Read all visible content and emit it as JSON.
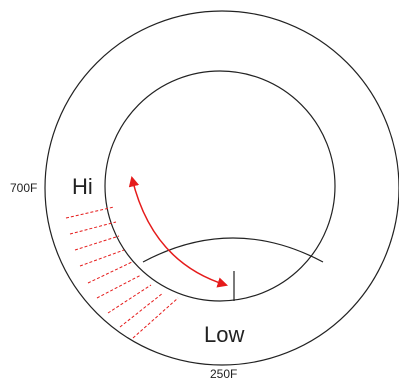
{
  "labels": {
    "high": "Hi",
    "low": "Low",
    "max_temp": "700F",
    "min_temp": "250F"
  },
  "colors": {
    "outline": "#222222",
    "accent": "#e51b1b"
  }
}
